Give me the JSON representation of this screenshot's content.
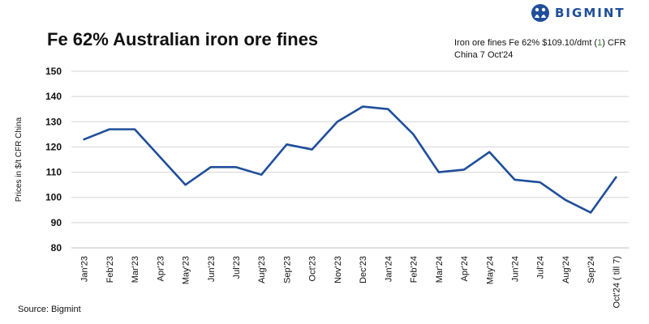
{
  "logo": {
    "brand": "BIGMINT",
    "icon": "people-globe-icon",
    "color": "#1f4e9a"
  },
  "title": "Fe 62% Australian iron ore fines",
  "price_note": {
    "prefix": "Iron ore fines Fe 62% $109.10/dmt (",
    "change": "1",
    "suffix": ") CFR China 7 Oct'24"
  },
  "source": "Source: Bigmint",
  "chart_data": {
    "type": "line",
    "title": "Fe 62% Australian iron ore fines",
    "xlabel": "",
    "ylabel": "Prices in $/t CFR China",
    "ylim": [
      80,
      150
    ],
    "yticks": [
      80,
      90,
      100,
      110,
      120,
      130,
      140,
      150
    ],
    "grid": true,
    "categories": [
      "Jan'23",
      "Feb'23",
      "Mar'23",
      "Apr'23",
      "May'23",
      "Jun'23",
      "Jul'23",
      "Aug'23",
      "Sep'23",
      "Oct'23",
      "Nov'23",
      "Dec'23",
      "Jan'24",
      "Feb'24",
      "Mar'24",
      "Apr'24",
      "May'24",
      "Jun'24",
      "Jul'24",
      "Aug'24",
      "Sep'24",
      "Oct'24 ( till 7)"
    ],
    "series": [
      {
        "color": "#1f4e9a",
        "values": [
          123,
          127,
          127,
          116,
          105,
          112,
          112,
          109,
          121,
          119,
          130,
          136,
          135,
          125,
          110,
          111,
          118,
          107,
          106,
          99,
          94,
          108
        ]
      }
    ]
  }
}
